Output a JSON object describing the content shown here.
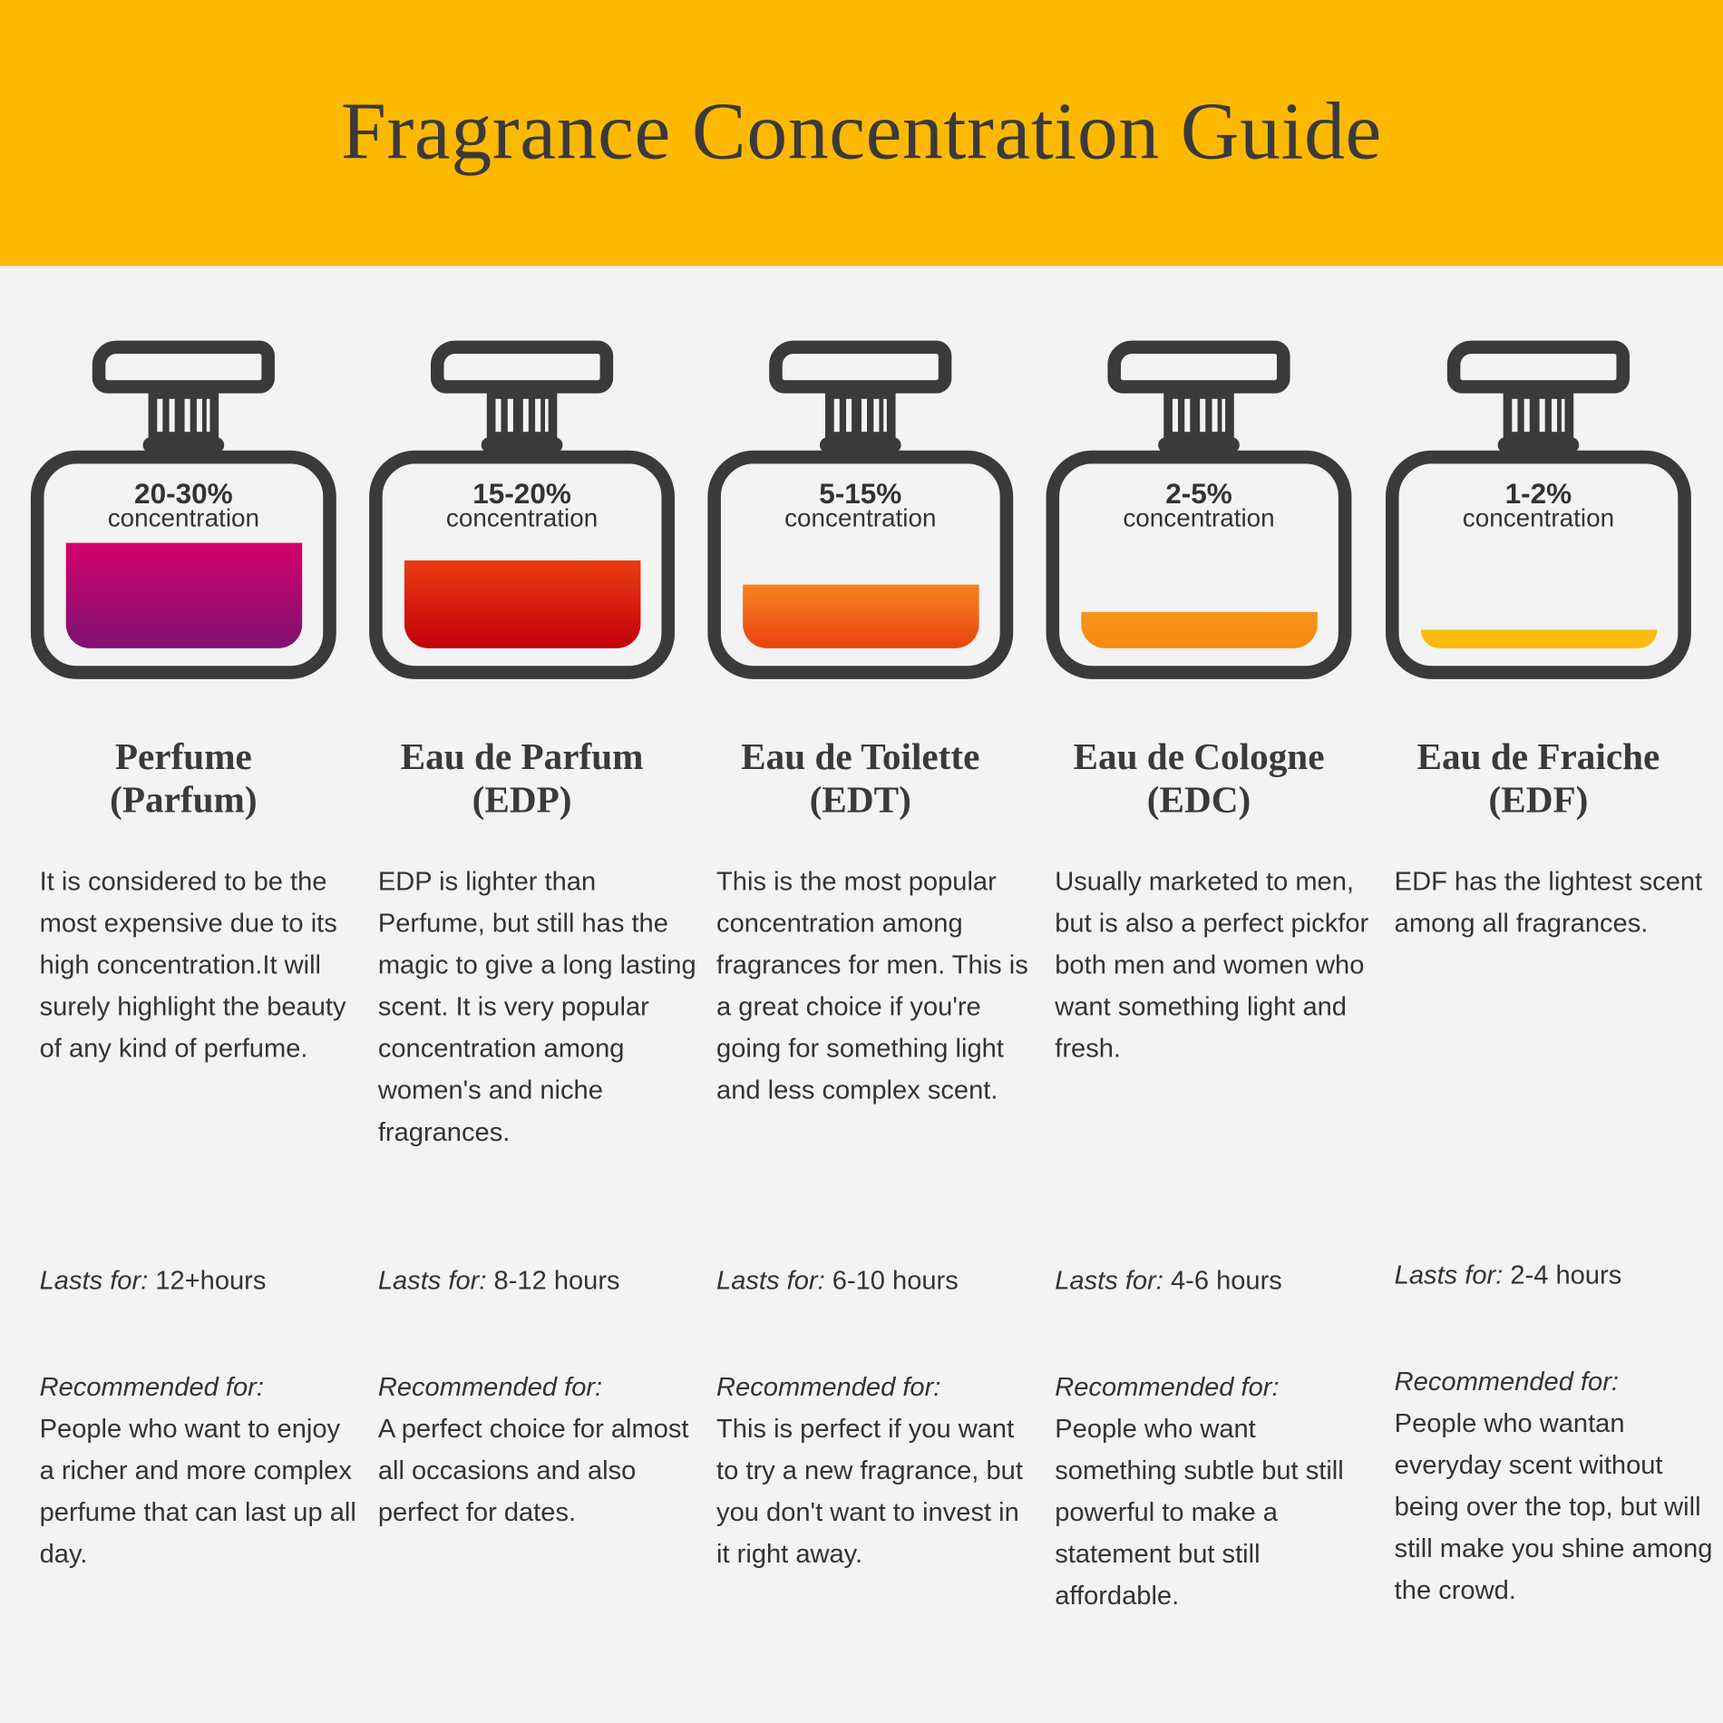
{
  "title": "Fragrance Concentration Guide",
  "colors": {
    "header": "#fdb900",
    "bottle": "#3a3a3c",
    "background": "#f3f3f3"
  },
  "concentration_word": "concentration",
  "lasts_label": "Lasts for:",
  "recommended_label": "Recommended for:",
  "items": [
    {
      "percent": "20-30%",
      "fill_level_percent": 30,
      "color_top": "#d4006e",
      "color_bottom": "#7e1270",
      "name_line1": "Perfume",
      "name_line2": "(Parfum)",
      "description": "It is considered to be the most expensive due to its high concentration.It will surely highlight the beauty of any kind of perfume.",
      "lasts": "12+hours",
      "recommended": "People who want to enjoy a richer and more complex perfume that can last up all day."
    },
    {
      "percent": "15-20%",
      "fill_level_percent": 20,
      "color_top": "#ea3c12",
      "color_bottom": "#c2000c",
      "name_line1": "Eau de Parfum",
      "name_line2": "(EDP)",
      "description": "EDP is lighter than Perfume, but still has the magic to give a long lasting scent. It is very popular concentration among women's and niche fragrances.",
      "lasts": "8-12 hours",
      "recommended": "A perfect choice for almost all occasions and also perfect for dates."
    },
    {
      "percent": "5-15%",
      "fill_level_percent": 15,
      "color_top": "#f7841f",
      "color_bottom": "#eb4210",
      "name_line1": "Eau de Toilette",
      "name_line2": "(EDT)",
      "description": "This is the most popular concentration among fragrances for men. This is a great choice if you're going for something light and less complex scent.",
      "lasts": "6-10 hours",
      "recommended": "This is perfect if you want to try a new fragrance, but you don't want to invest in it right away."
    },
    {
      "percent": "2-5%",
      "fill_level_percent": 5,
      "color_top": "#f7941a",
      "color_bottom": "#f58a12",
      "name_line1": "Eau de Cologne",
      "name_line2": "(EDC)",
      "description": "Usually marketed to men, but is also a perfect pickfor both men and women who want something light and fresh.",
      "lasts": "4-6 hours",
      "recommended": "People who want something subtle but still powerful to make a statement but still affordable."
    },
    {
      "percent": "1-2%",
      "fill_level_percent": 2,
      "color_top": "#fbbd12",
      "color_bottom": "#fbb80c",
      "name_line1": "Eau de Fraiche",
      "name_line2": "(EDF)",
      "description": "EDF has the lightest scent among all fragrances.",
      "lasts": "2-4 hours",
      "recommended": "People who wantan everyday scent without being over the top, but will still make you shine among the crowd."
    }
  ]
}
